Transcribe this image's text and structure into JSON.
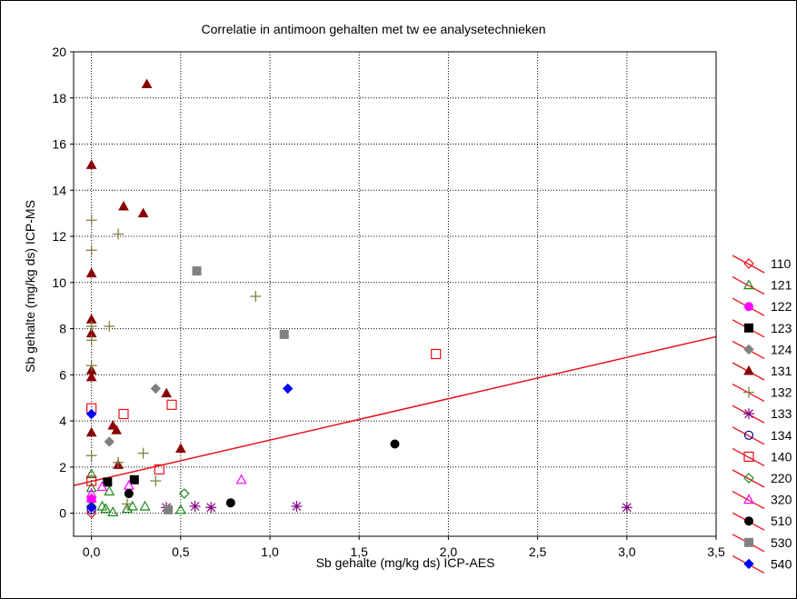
{
  "chart_data": {
    "type": "scatter",
    "title": "Correlatie in antimoon gehalten met tw ee analysetechnieken",
    "xlabel": "Sb gehalte (mg/kg ds) ICP-AES",
    "ylabel": "Sb gehalte (mg/kg ds) ICP-MS",
    "xlim": [
      -0.1,
      3.5
    ],
    "ylim": [
      -1,
      20
    ],
    "x_ticks": [
      0,
      0.5,
      1,
      1.5,
      2,
      2.5,
      3,
      3.5
    ],
    "x_tick_labels": [
      "0,0",
      "0,5",
      "1,0",
      "1,5",
      "2,0",
      "2,5",
      "3,0",
      "3,5"
    ],
    "y_ticks": [
      0,
      2,
      4,
      6,
      8,
      10,
      12,
      14,
      16,
      18,
      20
    ],
    "y_tick_labels": [
      "0",
      "2",
      "4",
      "6",
      "8",
      "10",
      "12",
      "14",
      "16",
      "18",
      "20"
    ],
    "grid": true,
    "legend_position": "right",
    "regression_line": {
      "color": "#e8111b",
      "x": [
        -0.1,
        3.5
      ],
      "y": [
        1.2,
        7.65
      ]
    },
    "series": [
      {
        "name": "110",
        "marker": "diamond-open",
        "color": "#e8111b",
        "points": [
          [
            0.0,
            0.0
          ]
        ]
      },
      {
        "name": "121",
        "marker": "triangle-open",
        "color": "#1a8a1a",
        "points": [
          [
            0.0,
            1.7
          ],
          [
            0.0,
            1.1
          ],
          [
            0.06,
            0.3
          ],
          [
            0.08,
            0.2
          ],
          [
            0.1,
            0.95
          ],
          [
            0.12,
            0.05
          ],
          [
            0.2,
            0.2
          ],
          [
            0.23,
            0.3
          ],
          [
            0.3,
            0.3
          ],
          [
            0.5,
            0.15
          ]
        ]
      },
      {
        "name": "122",
        "marker": "circle-filled",
        "color": "#ff00ff",
        "points": [
          [
            0.0,
            0.6
          ]
        ]
      },
      {
        "name": "123",
        "marker": "square-filled",
        "color": "#000000",
        "points": [
          [
            0.09,
            1.35
          ],
          [
            0.24,
            1.45
          ]
        ]
      },
      {
        "name": "124",
        "marker": "diamond-filled",
        "color": "#808080",
        "points": [
          [
            0.1,
            3.1
          ],
          [
            0.36,
            5.4
          ]
        ]
      },
      {
        "name": "131",
        "marker": "triangle-filled",
        "color": "#8b0000",
        "points": [
          [
            0.0,
            15.1
          ],
          [
            0.0,
            10.4
          ],
          [
            0.0,
            8.4
          ],
          [
            0.0,
            7.8
          ],
          [
            0.0,
            6.2
          ],
          [
            0.0,
            5.9
          ],
          [
            0.0,
            3.5
          ],
          [
            0.12,
            3.8
          ],
          [
            0.14,
            3.6
          ],
          [
            0.15,
            2.1
          ],
          [
            0.18,
            13.3
          ],
          [
            0.29,
            13.0
          ],
          [
            0.31,
            18.6
          ],
          [
            0.42,
            5.2
          ],
          [
            0.5,
            2.8
          ]
        ]
      },
      {
        "name": "132",
        "marker": "plus",
        "color": "#808040",
        "points": [
          [
            0.0,
            12.7
          ],
          [
            0.0,
            11.4
          ],
          [
            0.0,
            8.1
          ],
          [
            0.0,
            7.5
          ],
          [
            0.0,
            6.4
          ],
          [
            0.0,
            2.5
          ],
          [
            0.1,
            8.1
          ],
          [
            0.15,
            12.1
          ],
          [
            0.15,
            2.2
          ],
          [
            0.2,
            0.4
          ],
          [
            0.29,
            2.6
          ],
          [
            0.36,
            1.4
          ],
          [
            0.92,
            9.4
          ]
        ]
      },
      {
        "name": "133",
        "marker": "asterisk",
        "color": "#800080",
        "points": [
          [
            0.42,
            0.25
          ],
          [
            0.58,
            0.3
          ],
          [
            0.67,
            0.25
          ],
          [
            1.15,
            0.3
          ],
          [
            3.0,
            0.25
          ]
        ]
      },
      {
        "name": "134",
        "marker": "circle-open",
        "color": "#000080",
        "points": [
          [
            0.0,
            0.15
          ]
        ]
      },
      {
        "name": "140",
        "marker": "square-open",
        "color": "#e8111b",
        "points": [
          [
            0.0,
            4.55
          ],
          [
            0.0,
            1.4
          ],
          [
            0.18,
            4.3
          ],
          [
            0.38,
            1.9
          ],
          [
            0.45,
            4.7
          ],
          [
            1.93,
            6.9
          ]
        ]
      },
      {
        "name": "220",
        "marker": "diamond-open",
        "color": "#1a8a1a",
        "points": [
          [
            0.0,
            0.3
          ],
          [
            0.52,
            0.85
          ]
        ]
      },
      {
        "name": "320",
        "marker": "triangle-open",
        "color": "#ff00ff",
        "points": [
          [
            0.0,
            0.85
          ],
          [
            0.0,
            0.65
          ],
          [
            0.06,
            1.15
          ],
          [
            0.21,
            1.2
          ],
          [
            0.84,
            1.45
          ]
        ]
      },
      {
        "name": "510",
        "marker": "circle-filled",
        "color": "#000000",
        "points": [
          [
            0.21,
            0.85
          ],
          [
            0.78,
            0.45
          ],
          [
            1.7,
            3.0
          ]
        ]
      },
      {
        "name": "530",
        "marker": "square-filled",
        "color": "#808080",
        "points": [
          [
            0.43,
            0.15
          ],
          [
            0.59,
            10.5
          ],
          [
            1.08,
            7.75
          ]
        ]
      },
      {
        "name": "540",
        "marker": "diamond-filled",
        "color": "#0000ff",
        "points": [
          [
            0.0,
            4.3
          ],
          [
            0.0,
            0.25
          ],
          [
            1.1,
            5.4
          ]
        ]
      }
    ]
  }
}
